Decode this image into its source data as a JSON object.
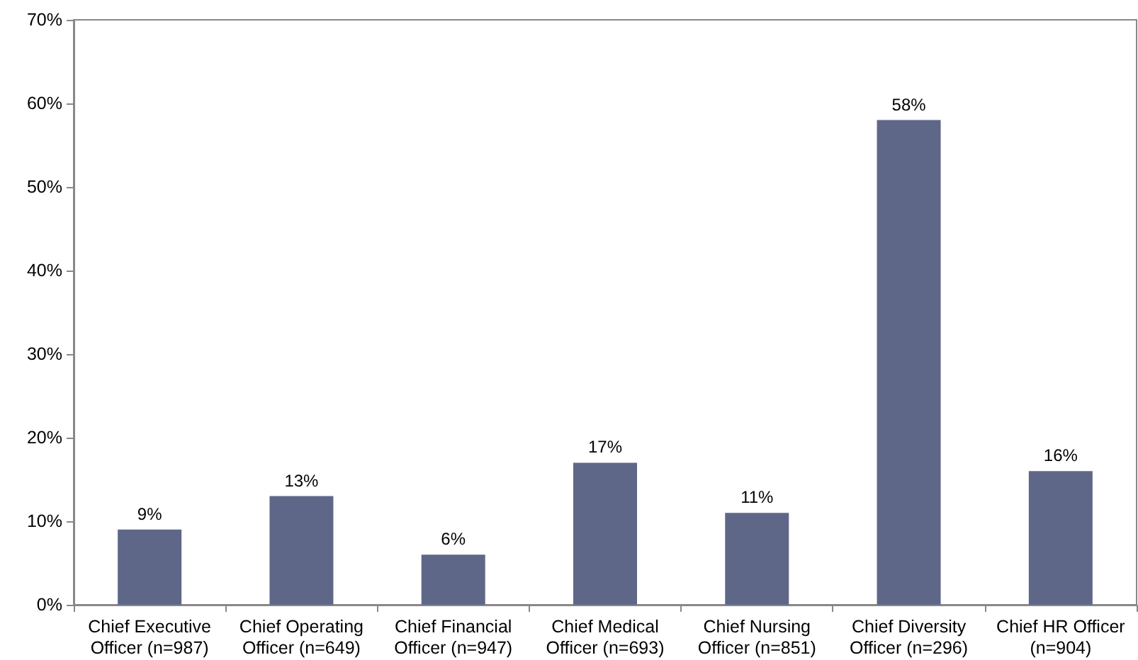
{
  "chart_data": {
    "type": "bar",
    "categories": [
      "Chief Executive\nOfficer (n=987)",
      "Chief Operating\nOfficer (n=649)",
      "Chief Financial\nOfficer (n=947)",
      "Chief Medical\nOfficer (n=693)",
      "Chief Nursing\nOfficer (n=851)",
      "Chief Diversity\nOfficer (n=296)",
      "Chief HR Officer\n(n=904)"
    ],
    "values": [
      9,
      13,
      6,
      17,
      11,
      58,
      16
    ],
    "value_labels": [
      "9%",
      "13%",
      "6%",
      "17%",
      "11%",
      "58%",
      "16%"
    ],
    "color": "#5f6789",
    "ylim": [
      0,
      70
    ],
    "yticks": [
      {
        "value": 0,
        "label": "0%"
      },
      {
        "value": 10,
        "label": "10%"
      },
      {
        "value": 20,
        "label": "20%"
      },
      {
        "value": 30,
        "label": "30%"
      },
      {
        "value": 40,
        "label": "40%"
      },
      {
        "value": 50,
        "label": "50%"
      },
      {
        "value": 60,
        "label": "60%"
      },
      {
        "value": 70,
        "label": "70%"
      }
    ],
    "grid": false
  }
}
